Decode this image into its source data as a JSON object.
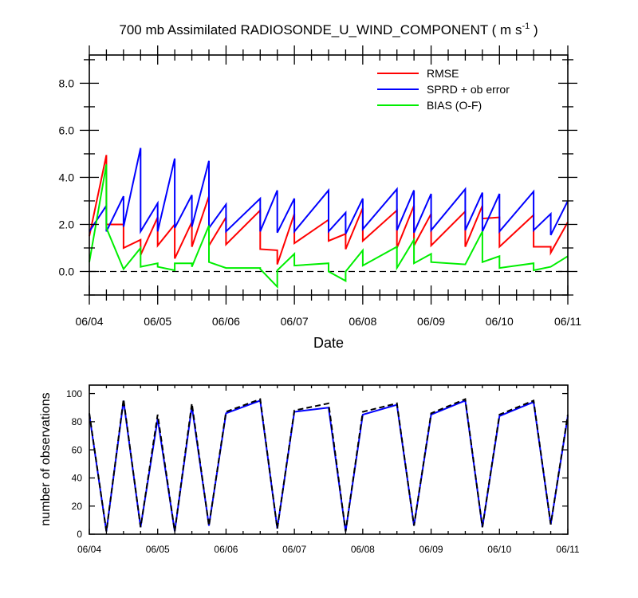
{
  "chart_data": [
    {
      "type": "line",
      "title": "700 mb Assimilated RADIOSONDE_U_WIND_COMPONENT ( m s",
      "title_superscript": "-1",
      "title_suffix": " )",
      "xlabel": "Date",
      "ylabel": "",
      "xlim": [
        0,
        7
      ],
      "ylim": [
        -1,
        9.2
      ],
      "x_ticks": [
        0,
        1,
        2,
        3,
        4,
        5,
        6,
        7
      ],
      "x_tick_labels": [
        "06/04",
        "06/05",
        "06/06",
        "06/07",
        "06/08",
        "06/09",
        "06/10",
        "06/11"
      ],
      "y_ticks": [
        0,
        2,
        4,
        6,
        8
      ],
      "y_tick_labels": [
        "0.0",
        "2.0",
        "4.0",
        "6.0",
        "8.0"
      ],
      "grid": false,
      "legend_position": "top-right",
      "zero_line": true,
      "series": [
        {
          "name": "RMSE",
          "color": "#ff0000",
          "x": [
            0,
            0.25,
            0.25,
            0.5,
            0.5,
            0.75,
            0.75,
            1.0,
            1.0,
            1.25,
            1.25,
            1.5,
            1.5,
            1.75,
            1.75,
            2.0,
            2.0,
            2.5,
            2.5,
            2.75,
            2.75,
            3.0,
            3.0,
            3.5,
            3.5,
            3.75,
            3.75,
            4.0,
            4.0,
            4.5,
            4.5,
            4.75,
            4.75,
            5.0,
            5.0,
            5.5,
            5.5,
            5.75,
            5.75,
            6.0,
            6.0,
            6.5,
            6.5,
            6.75,
            6.75,
            7.0
          ],
          "y": [
            1.5,
            4.95,
            2.0,
            2.0,
            1.0,
            1.35,
            0.7,
            2.3,
            1.1,
            2.0,
            0.55,
            2.1,
            1.05,
            3.2,
            1.1,
            2.3,
            1.15,
            2.6,
            0.95,
            0.9,
            0.3,
            2.45,
            1.2,
            2.2,
            1.3,
            1.6,
            0.95,
            2.7,
            1.3,
            2.6,
            1.0,
            2.8,
            1.1,
            2.45,
            1.1,
            2.55,
            1.05,
            2.8,
            2.25,
            2.3,
            1.05,
            2.4,
            1.05,
            1.05,
            0.8,
            2.1
          ]
        },
        {
          "name": "SPRD + ob error",
          "color": "#0000ff",
          "x": [
            0,
            0.25,
            0.25,
            0.5,
            0.5,
            0.75,
            0.75,
            1.0,
            1.0,
            1.25,
            1.25,
            1.5,
            1.5,
            1.75,
            1.75,
            2.0,
            2.0,
            2.5,
            2.5,
            2.75,
            2.75,
            3.0,
            3.0,
            3.5,
            3.5,
            3.75,
            3.75,
            4.0,
            4.0,
            4.5,
            4.5,
            4.75,
            4.75,
            5.0,
            5.0,
            5.5,
            5.5,
            5.75,
            5.75,
            6.0,
            6.0,
            6.5,
            6.5,
            6.75,
            6.75,
            7.0
          ],
          "y": [
            1.7,
            2.8,
            1.7,
            3.2,
            1.9,
            5.25,
            1.7,
            2.9,
            1.7,
            4.8,
            1.85,
            3.25,
            1.9,
            4.7,
            1.85,
            2.85,
            1.7,
            3.1,
            1.7,
            3.45,
            1.65,
            3.1,
            1.7,
            3.45,
            1.7,
            2.5,
            1.6,
            3.1,
            1.8,
            3.5,
            1.75,
            3.45,
            1.65,
            3.3,
            1.75,
            3.5,
            1.75,
            3.35,
            1.7,
            3.3,
            1.7,
            3.4,
            1.75,
            2.45,
            1.55,
            3.0
          ]
        },
        {
          "name": "BIAS (O-F)",
          "color": "#00ee00",
          "x": [
            0,
            0.25,
            0.25,
            0.5,
            0.5,
            0.75,
            0.75,
            1.0,
            1.0,
            1.25,
            1.25,
            1.5,
            1.5,
            1.75,
            1.75,
            2.0,
            2.0,
            2.5,
            2.5,
            2.75,
            2.75,
            3.0,
            3.0,
            3.5,
            3.5,
            3.75,
            3.75,
            4.0,
            4.0,
            4.5,
            4.5,
            4.75,
            4.75,
            5.0,
            5.0,
            5.5,
            5.5,
            5.75,
            5.75,
            6.0,
            6.0,
            6.5,
            6.5,
            6.75,
            6.75,
            7.0
          ],
          "y": [
            0.4,
            4.55,
            1.85,
            0.1,
            0.1,
            1.0,
            0.2,
            0.35,
            0.2,
            0.05,
            0.35,
            0.35,
            0.2,
            1.95,
            0.4,
            0.15,
            0.15,
            0.15,
            0.1,
            -0.65,
            0.05,
            0.75,
            0.25,
            0.35,
            0.0,
            -0.4,
            0.0,
            0.9,
            0.25,
            1.05,
            0.15,
            1.35,
            0.35,
            0.75,
            0.4,
            0.3,
            0.3,
            1.7,
            0.4,
            0.65,
            0.15,
            0.35,
            0.05,
            0.2,
            0.2,
            0.65
          ]
        }
      ]
    },
    {
      "type": "line",
      "title": "",
      "xlabel": "",
      "ylabel": "number of observations",
      "xlim": [
        0,
        7
      ],
      "ylim": [
        0,
        106
      ],
      "x_ticks": [
        0,
        1,
        2,
        3,
        4,
        5,
        6,
        7
      ],
      "x_tick_labels": [
        "06/04",
        "06/05",
        "06/06",
        "06/07",
        "06/08",
        "06/09",
        "06/10",
        "06/11"
      ],
      "y_ticks": [
        0,
        20,
        40,
        60,
        80,
        100
      ],
      "y_tick_labels": [
        "0",
        "20",
        "40",
        "60",
        "80",
        "100"
      ],
      "grid": false,
      "series": [
        {
          "color": "#0000ff",
          "style": "solid",
          "x": [
            0,
            0.25,
            0.5,
            0.75,
            1.0,
            1.25,
            1.5,
            1.75,
            2.0,
            2.5,
            2.75,
            3.0,
            3.5,
            3.75,
            4.0,
            4.5,
            4.75,
            5.0,
            5.5,
            5.75,
            6.0,
            6.5,
            6.75,
            7.0
          ],
          "y": [
            85,
            2,
            95,
            5,
            82,
            2,
            91,
            6,
            86,
            95,
            4,
            87,
            90,
            2,
            85,
            92,
            6,
            85,
            95,
            5,
            84,
            94,
            7,
            84
          ]
        },
        {
          "color": "#000000",
          "style": "dashed",
          "x": [
            0,
            0.25,
            0.5,
            0.75,
            1.0,
            1.25,
            1.5,
            1.75,
            2.0,
            2.5,
            2.75,
            3.0,
            3.5,
            3.75,
            4.0,
            4.5,
            4.75,
            5.0,
            5.5,
            5.75,
            6.0,
            6.5,
            6.75,
            7.0
          ],
          "y": [
            86,
            2,
            96,
            5,
            85,
            2,
            93,
            6,
            87,
            96,
            4,
            88,
            93,
            2,
            87,
            93,
            6,
            86,
            96,
            5,
            85,
            95,
            7,
            85
          ]
        }
      ]
    }
  ]
}
